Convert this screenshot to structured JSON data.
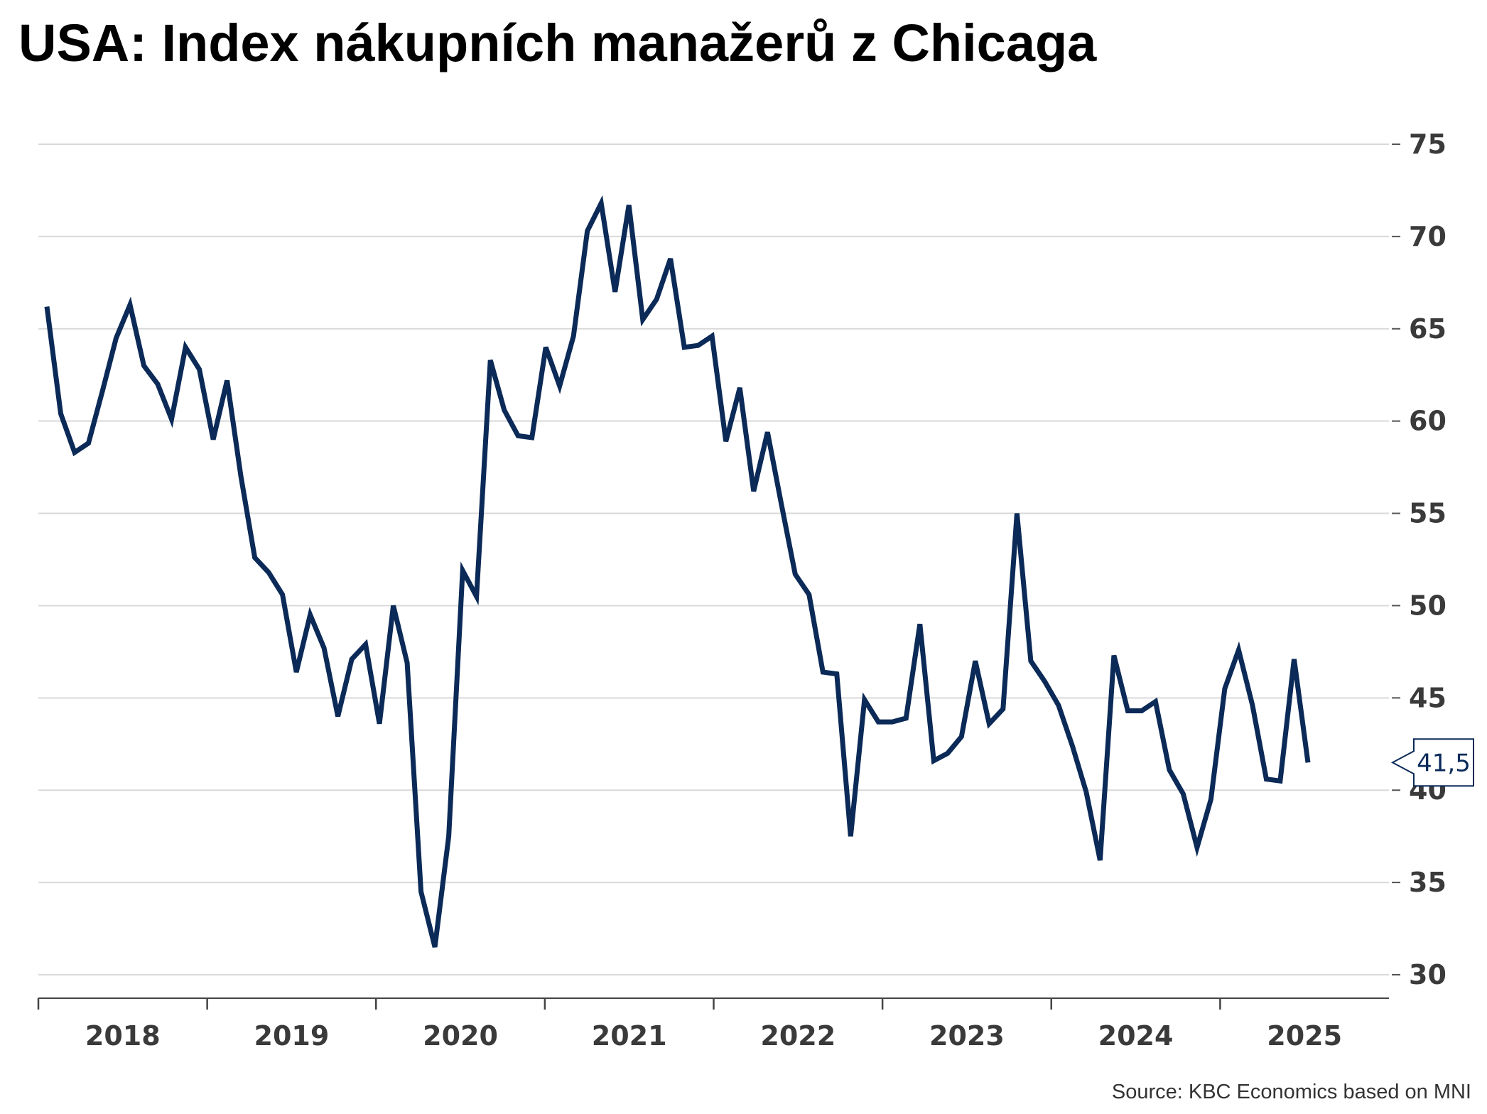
{
  "chart_data": {
    "type": "line",
    "title": "USA: Index nákupních manažerů z Chicaga",
    "xlabel": "",
    "ylabel": "",
    "ylim": [
      30,
      75
    ],
    "y_ticks": [
      30,
      35,
      40,
      45,
      50,
      55,
      60,
      65,
      70,
      75
    ],
    "y_tick_labels": [
      "30",
      "35",
      "40",
      "45",
      "50",
      "55",
      "60",
      "65",
      "70",
      "75"
    ],
    "x_tick_labels": [
      "2018",
      "2019",
      "2020",
      "2021",
      "2022",
      "2023",
      "2024",
      "2025"
    ],
    "grid": true,
    "y_axis_position": "right",
    "line_color": "#0b2a57",
    "series": [
      {
        "start": "2018-01",
        "frequency": "monthly",
        "values": [
          66.2,
          60.4,
          58.3,
          58.8,
          61.6,
          64.5,
          66.3,
          63.0,
          62.0,
          60.1,
          64.0,
          62.8,
          59.0,
          62.2,
          57.0,
          52.6,
          51.8,
          50.6,
          46.4,
          49.5,
          47.7,
          44.0,
          47.1,
          47.9,
          43.6,
          50.0,
          46.9,
          34.5,
          31.5,
          37.5,
          51.9,
          50.5,
          63.3,
          60.6,
          59.2,
          59.1,
          64.0,
          61.9,
          64.6,
          70.3,
          71.8,
          67.0,
          71.7,
          65.5,
          66.6,
          68.8,
          64.0,
          64.1,
          64.6,
          58.9,
          61.8,
          56.2,
          59.4,
          55.5,
          51.7,
          50.6,
          46.4,
          46.3,
          37.5,
          44.9,
          43.7,
          43.7,
          43.9,
          49.0,
          41.6,
          42.0,
          42.9,
          47.0,
          43.6,
          44.4,
          55.0,
          47.0,
          45.9,
          44.6,
          42.4,
          39.9,
          36.2,
          47.3,
          44.3,
          44.3,
          44.8,
          41.1,
          39.8,
          36.9,
          39.5,
          45.5,
          47.6,
          44.6,
          40.6,
          40.5,
          47.1,
          41.5
        ]
      }
    ],
    "last_value_label": "41,5",
    "source": "Source: KBC Economics based on MNI"
  }
}
